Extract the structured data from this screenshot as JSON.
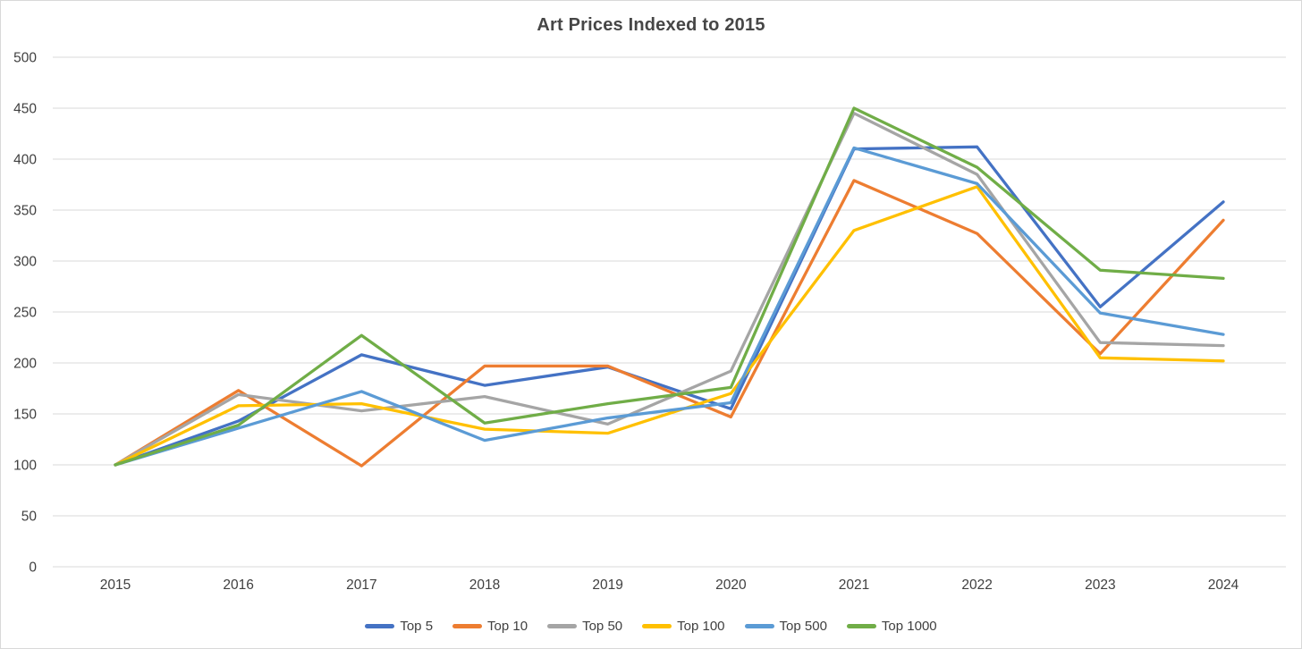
{
  "chart_data": {
    "type": "line",
    "title": "Art Prices Indexed to 2015",
    "x": [
      "2015",
      "2016",
      "2017",
      "2018",
      "2019",
      "2020",
      "2021",
      "2022",
      "2023",
      "2024"
    ],
    "series": [
      {
        "name": "Top 5",
        "color": "#4472C4",
        "values": [
          100,
          143,
          208,
          178,
          196,
          155,
          410,
          412,
          255,
          358
        ]
      },
      {
        "name": "Top 10",
        "color": "#ED7D31",
        "values": [
          100,
          173,
          99,
          197,
          197,
          147,
          379,
          327,
          209,
          340
        ]
      },
      {
        "name": "Top 50",
        "color": "#A5A5A5",
        "values": [
          100,
          169,
          153,
          167,
          140,
          192,
          445,
          385,
          220,
          217
        ]
      },
      {
        "name": "Top 100",
        "color": "#FFC000",
        "values": [
          100,
          158,
          160,
          135,
          131,
          170,
          330,
          373,
          205,
          202
        ]
      },
      {
        "name": "Top 500",
        "color": "#5B9BD5",
        "values": [
          100,
          136,
          172,
          124,
          146,
          161,
          411,
          376,
          249,
          228
        ]
      },
      {
        "name": "Top 1000",
        "color": "#70AD47",
        "values": [
          100,
          139,
          227,
          141,
          160,
          176,
          450,
          392,
          291,
          283
        ]
      }
    ],
    "xlabel": "",
    "ylabel": "",
    "ylim": [
      0,
      500
    ],
    "y_tick_step": 50,
    "y_ticks": [
      0,
      50,
      100,
      150,
      200,
      250,
      300,
      350,
      400,
      450,
      500
    ],
    "grid": true,
    "legend_position": "bottom",
    "gridline_color": "#D9D9D9",
    "text_color": "#404040",
    "line_width": 3.3
  }
}
